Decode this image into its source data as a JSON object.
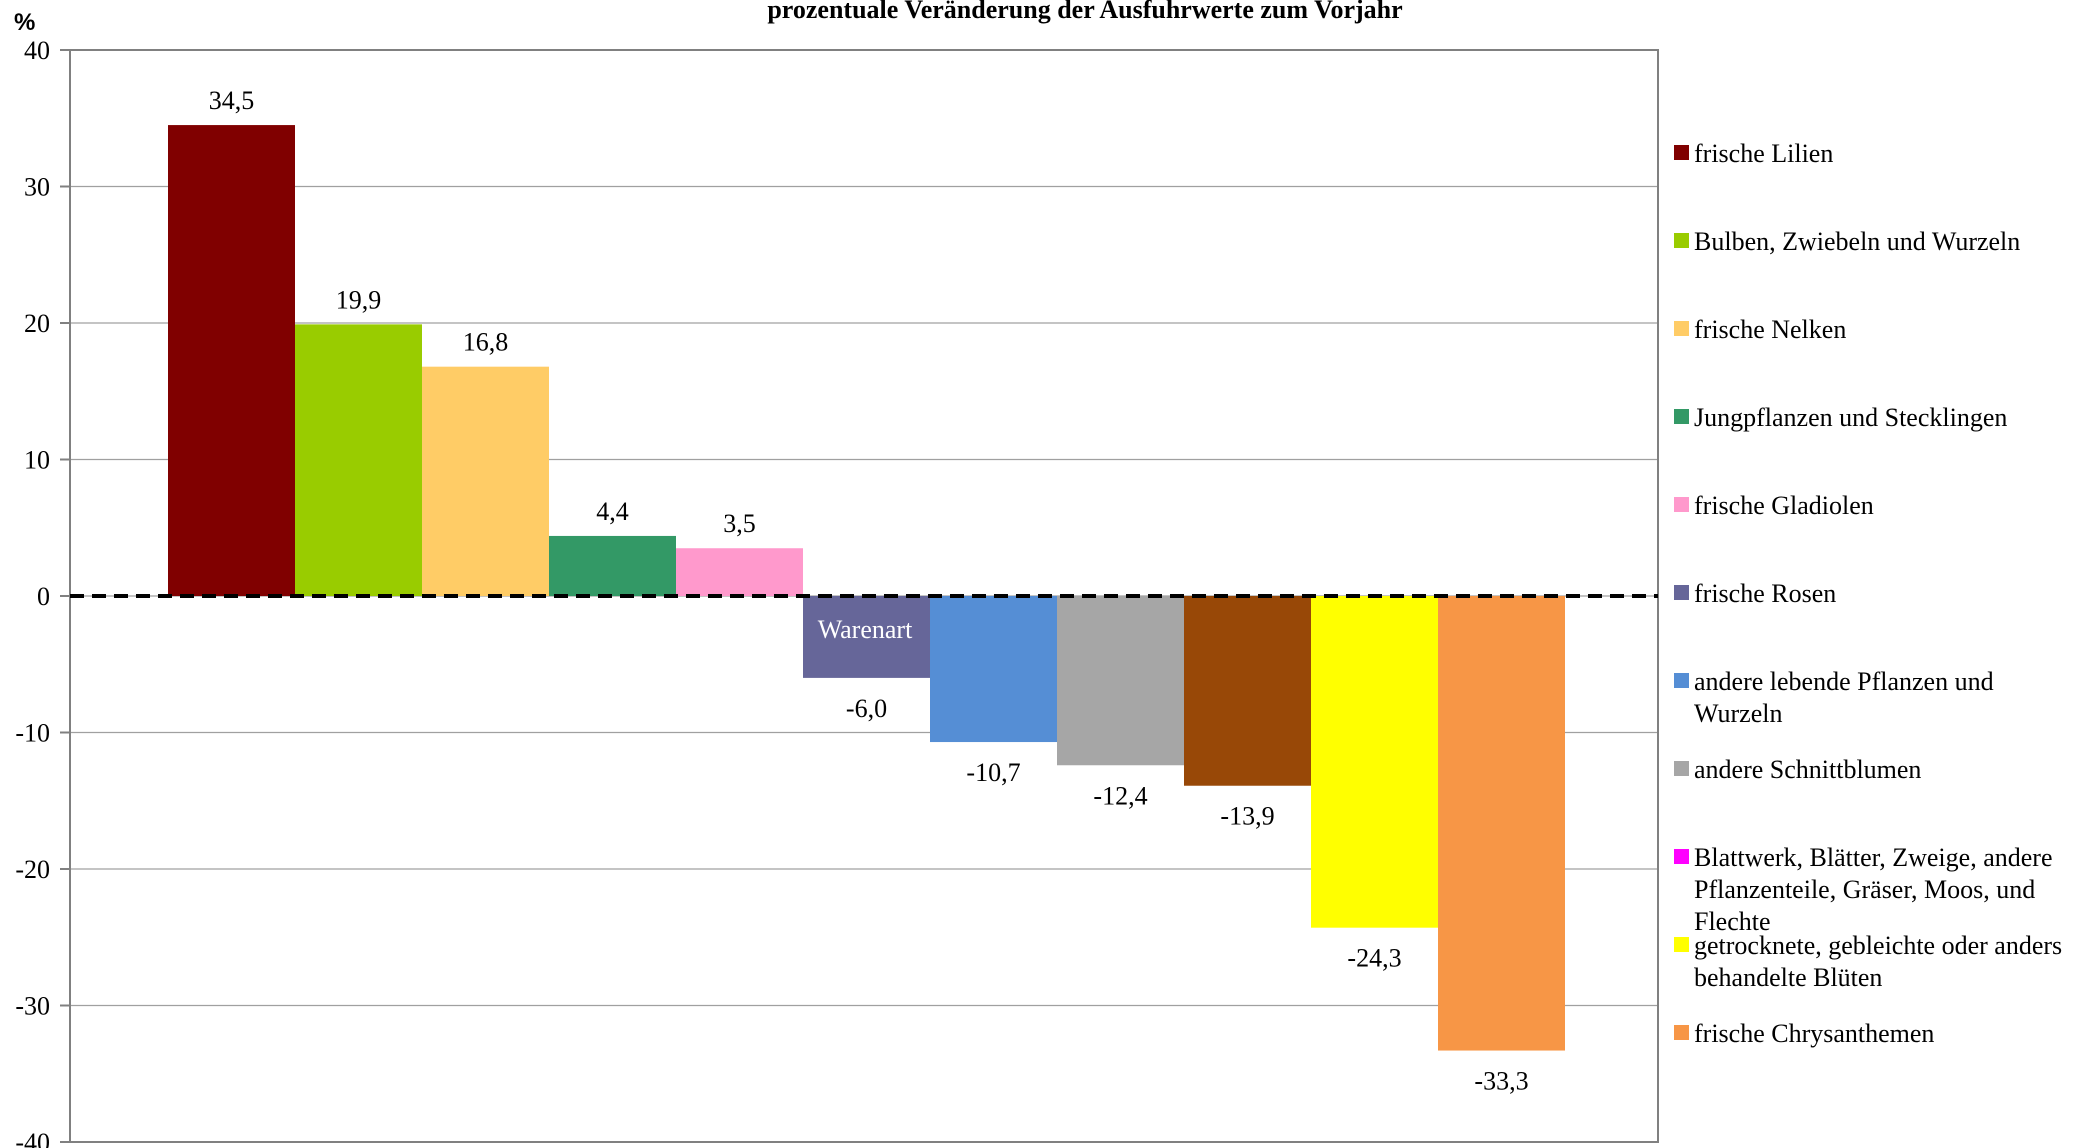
{
  "chart_data": {
    "type": "bar",
    "title": "prozentuale Veränderung der Ausfuhrwerte zum Vorjahr",
    "unit_label": "%",
    "x_axis_label": "Warenart",
    "ylim": [
      -40,
      40
    ],
    "y_ticks": [
      40,
      30,
      20,
      10,
      0,
      -10,
      -20,
      -30,
      -40
    ],
    "grid": true,
    "zero_line": "dashed",
    "legend_position": "right",
    "series": [
      {
        "name": "frische Lilien",
        "value": 34.5,
        "label": "34,5",
        "color": "#800000"
      },
      {
        "name": "Bulben, Zwiebeln und Wurzeln",
        "value": 19.9,
        "label": "19,9",
        "color": "#99cc00"
      },
      {
        "name": "frische Nelken",
        "value": 16.8,
        "label": "16,8",
        "color": "#ffcc66"
      },
      {
        "name": "Jungpflanzen und Stecklingen",
        "value": 4.4,
        "label": "4,4",
        "color": "#339966"
      },
      {
        "name": "frische Gladiolen",
        "value": 3.5,
        "label": "3,5",
        "color": "#ff99cc"
      },
      {
        "name": "frische Rosen",
        "value": -6.0,
        "label": "-6,0",
        "color": "#666699"
      },
      {
        "name": "andere lebende Pflanzen und Wurzeln",
        "value": -10.7,
        "label": "-10,7",
        "color": "#558ed5"
      },
      {
        "name": "andere Schnittblumen",
        "value": -12.4,
        "label": "-12,4",
        "color": "#a6a6a6"
      },
      {
        "name": "Blattwerk, Blätter, Zweige, andere Pflanzenteile, Gräser, Moos, und Flechte",
        "value": -13.9,
        "label": "-13,9",
        "color": "#984807",
        "legend_color": "#ff00ff"
      },
      {
        "name": "getrocknete, gebleichte oder anders behandelte Blüten",
        "value": -24.3,
        "label": "-24,3",
        "color": "#ffff00"
      },
      {
        "name": "frische Chrysanthemen",
        "value": -33.3,
        "label": "-33,3",
        "color": "#f79646"
      }
    ],
    "legend_entries": [
      {
        "lines": [
          "frische Lilien"
        ],
        "color": "#800000"
      },
      {
        "lines": [
          "Bulben, Zwiebeln und Wurzeln"
        ],
        "color": "#99cc00"
      },
      {
        "lines": [
          "frische Nelken"
        ],
        "color": "#ffcc66"
      },
      {
        "lines": [
          "Jungpflanzen und Stecklingen"
        ],
        "color": "#339966"
      },
      {
        "lines": [
          "frische Gladiolen"
        ],
        "color": "#ff99cc"
      },
      {
        "lines": [
          "frische Rosen"
        ],
        "color": "#666699"
      },
      {
        "lines": [
          "andere lebende Pflanzen und",
          "Wurzeln"
        ],
        "color": "#558ed5"
      },
      {
        "lines": [
          "andere Schnittblumen"
        ],
        "color": "#a6a6a6"
      },
      {
        "lines": [
          "Blattwerk, Blätter, Zweige, andere",
          "Pflanzenteile, Gräser, Moos, und",
          "Flechte"
        ],
        "color": "#ff00ff"
      },
      {
        "lines": [
          "getrocknete, gebleichte oder anders",
          "behandelte Blüten"
        ],
        "color": "#ffff00"
      },
      {
        "lines": [
          "frische Chrysanthemen"
        ],
        "color": "#f79646"
      }
    ]
  }
}
